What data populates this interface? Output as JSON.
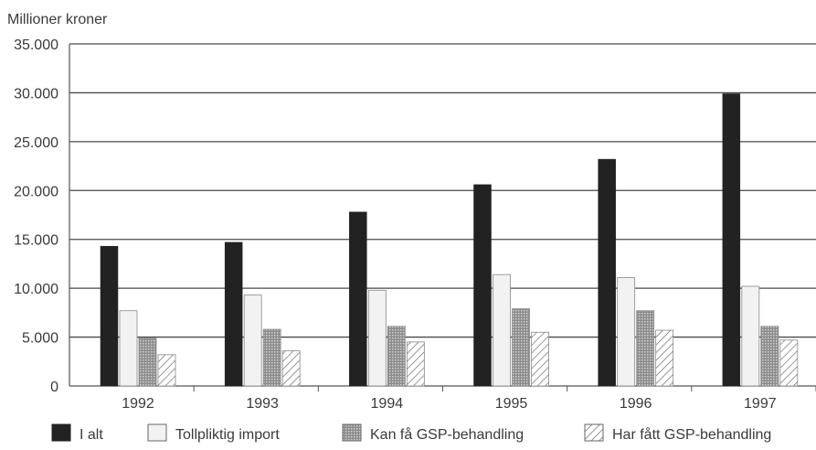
{
  "chart_data": {
    "type": "bar",
    "ylabel": "Millioner kroner",
    "categories": [
      "1992",
      "1993",
      "1994",
      "1995",
      "1996",
      "1997"
    ],
    "ylim": [
      0,
      35000
    ],
    "yticks": [
      0,
      5000,
      10000,
      15000,
      20000,
      25000,
      30000,
      35000
    ],
    "ytick_labels": [
      "0",
      "5.000",
      "10.000",
      "15.000",
      "20.000",
      "25.000",
      "30.000",
      "35.000"
    ],
    "grid": true,
    "legend_position": "bottom",
    "series": [
      {
        "name": "I alt",
        "values": [
          14300,
          14700,
          17800,
          20600,
          23200,
          29900
        ],
        "color": "#222222",
        "pattern": "solid"
      },
      {
        "name": "Tollpliktig import",
        "values": [
          7700,
          9300,
          9800,
          11400,
          11100,
          10200
        ],
        "color": "#f2f2f2",
        "pattern": "light"
      },
      {
        "name": "Kan få GSP-behandling",
        "values": [
          4900,
          5800,
          6100,
          7900,
          7700,
          6100
        ],
        "color": "#9a9a9a",
        "pattern": "dotted"
      },
      {
        "name": "Har fått GSP-behandling",
        "values": [
          3200,
          3600,
          4500,
          5500,
          5700,
          4700
        ],
        "color": "#ffffff",
        "pattern": "hatched"
      }
    ]
  }
}
